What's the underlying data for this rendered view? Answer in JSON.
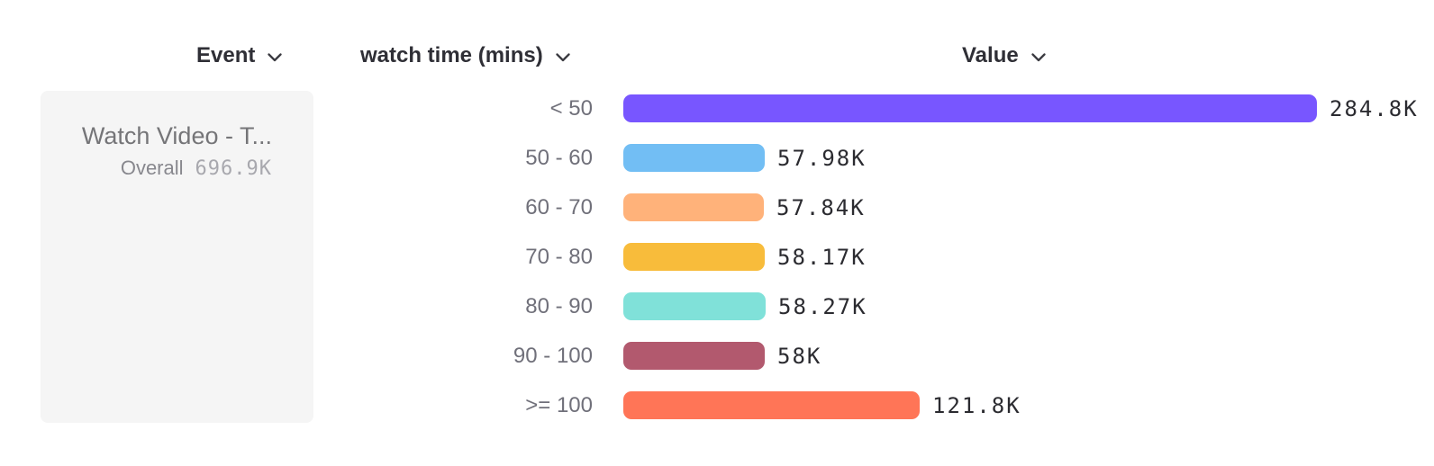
{
  "headers": {
    "event": "Event",
    "breakdown": "watch time (mins)",
    "value": "Value"
  },
  "panel": {
    "event_name": "Watch Video - T...",
    "overall_label": "Overall",
    "overall_value": "696.9K"
  },
  "chart_data": {
    "type": "bar",
    "orientation": "horizontal",
    "title": "",
    "xlabel": "Value",
    "ylabel": "watch time (mins)",
    "categories": [
      "< 50",
      "50 - 60",
      "60 - 70",
      "70 - 80",
      "80 - 90",
      "90 - 100",
      ">= 100"
    ],
    "values": [
      284800,
      57980,
      57840,
      58170,
      58270,
      58000,
      121800
    ],
    "value_labels": [
      "284.8K",
      "57.98K",
      "57.84K",
      "58.17K",
      "58.27K",
      "58K",
      "121.8K"
    ],
    "colors": [
      "#7856FF",
      "#72BEF4",
      "#FFB27A",
      "#F8BC3B",
      "#80E1D9",
      "#B2596E",
      "#FF7557"
    ],
    "xlim": [
      0,
      284800
    ],
    "grid": false,
    "legend": false
  }
}
